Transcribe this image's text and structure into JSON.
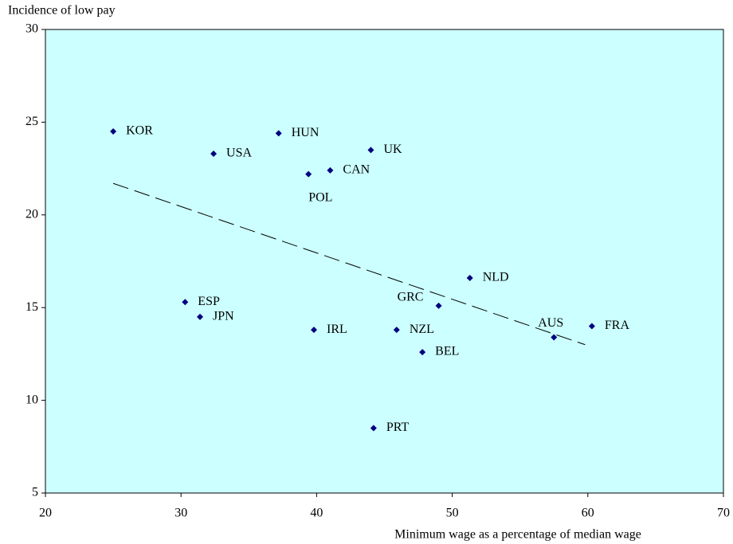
{
  "chart_data": {
    "type": "scatter",
    "y_label": "Incidence of low pay",
    "x_label": "Minimum wage as a percentage of median wage",
    "labels": [
      "KOR",
      "USA",
      "HUN",
      "UK",
      "CAN",
      "POL",
      "ESP",
      "JPN",
      "IRL",
      "NZL",
      "BEL",
      "GRC",
      "NLD",
      "AUS",
      "FRA",
      "PRT"
    ],
    "x": [
      25,
      32.4,
      37.2,
      44.0,
      41.0,
      39.4,
      30.3,
      31.4,
      39.8,
      45.9,
      47.8,
      49.0,
      51.3,
      57.5,
      60.3,
      44.2
    ],
    "y": [
      24.5,
      23.3,
      24.4,
      23.5,
      22.4,
      22.2,
      15.3,
      14.5,
      13.8,
      13.8,
      12.6,
      15.1,
      16.6,
      13.4,
      14.0,
      8.5
    ],
    "color": "#000080",
    "trendline": {
      "x": [
        25,
        59.8
      ],
      "y": [
        21.7,
        13.0
      ]
    },
    "xlim": [
      20,
      70
    ],
    "xticks": [
      20,
      30,
      40,
      50,
      60,
      70
    ],
    "ylim": [
      5,
      30
    ],
    "yticks": [
      5,
      10,
      15,
      20,
      25,
      30
    ],
    "plot_background": "#ccffff"
  }
}
